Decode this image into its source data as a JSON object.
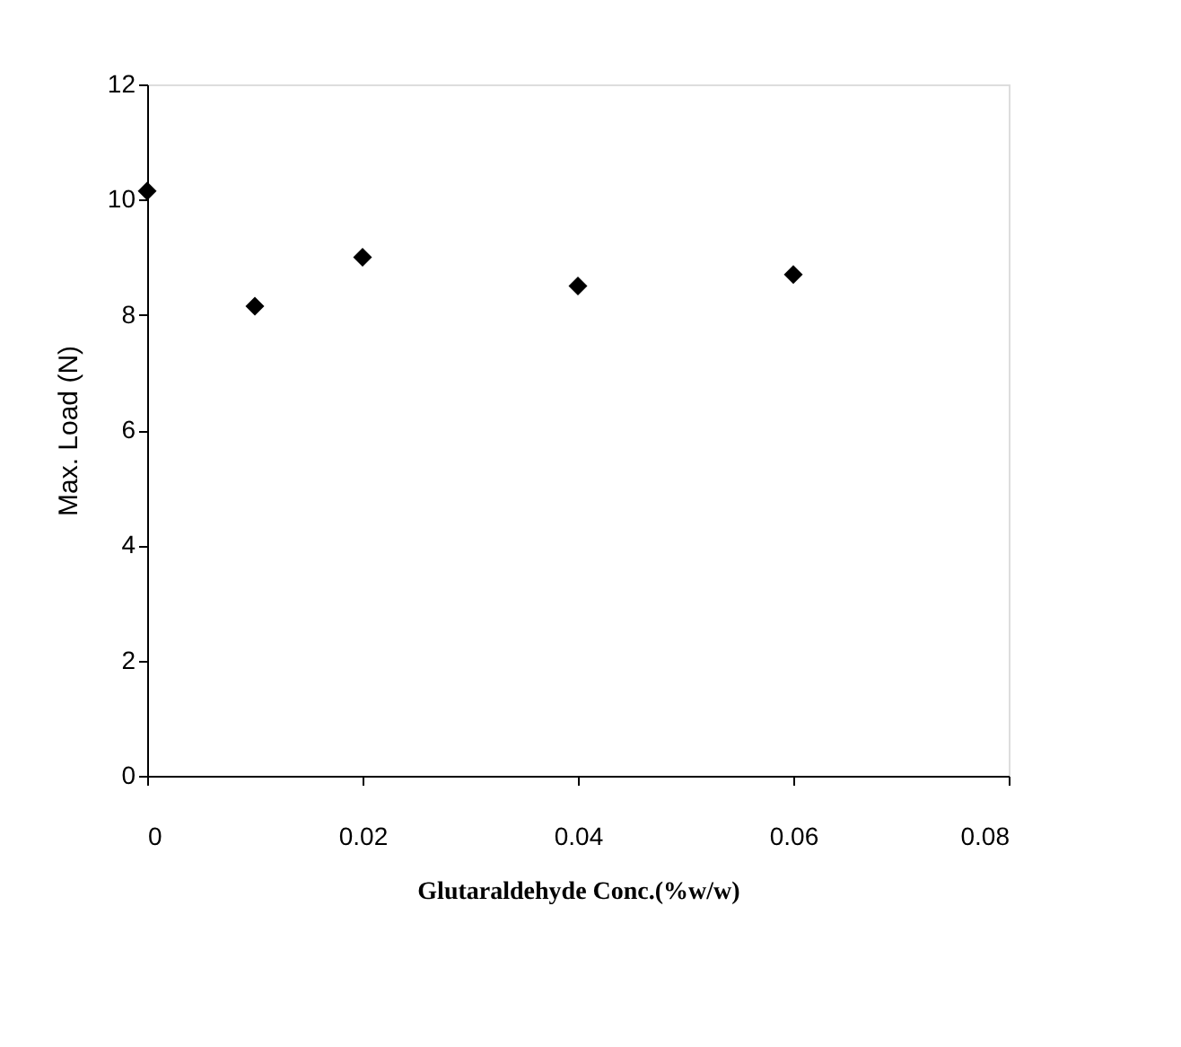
{
  "chart_data": {
    "type": "scatter",
    "xlabel": "Glutaraldehyde Conc.(%w/w)",
    "ylabel": "Max. Load (N)",
    "x": [
      0,
      0.01,
      0.02,
      0.04,
      0.06
    ],
    "series": [
      {
        "color": "#000000",
        "values": [
          10.15,
          8.15,
          9.0,
          8.5,
          8.7
        ]
      }
    ],
    "xlim": [
      0,
      0.08
    ],
    "xticks": [
      0,
      0.02,
      0.04,
      0.06,
      0.08
    ],
    "ylim": [
      0,
      12
    ],
    "yticks": [
      0,
      2,
      4,
      6,
      8,
      10,
      12
    ],
    "marker": "diamond",
    "grid": false
  }
}
